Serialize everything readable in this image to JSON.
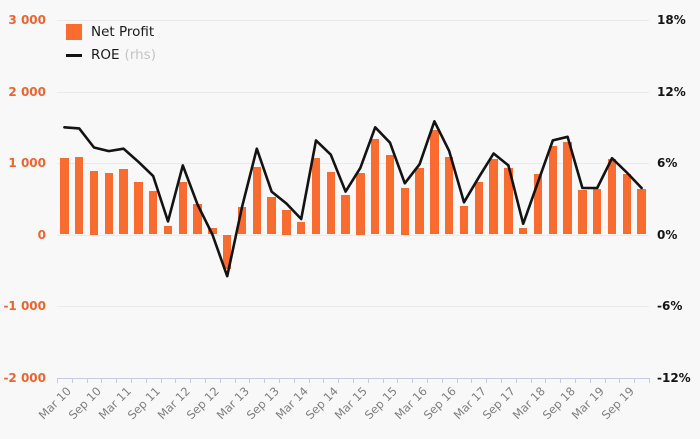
{
  "legend": {
    "items": [
      {
        "label": "Net Profit"
      },
      {
        "label": "ROE",
        "suffix": "(rhs)"
      }
    ]
  },
  "colors": {
    "background": "#F8F8F8",
    "bar": "#F96C2F",
    "line": "#131313",
    "left_axis_labels": "#EE652C",
    "right_axis_labels": "#141414",
    "x_axis_labels": "#7F7F7F",
    "gridline": "#EAEAEA",
    "axis_and_ticks": "#C5CBE3",
    "rhs_muted": "#C4C4C4"
  },
  "chart_data": {
    "type": "combo",
    "grid": true,
    "legend_position": "top-left",
    "categories": [
      "Mar 10",
      "Jun 10",
      "Sep 10",
      "Dec 10",
      "Mar 11",
      "Jun 11",
      "Sep 11",
      "Dec 11",
      "Mar 12",
      "Jun 12",
      "Sep 12",
      "Dec 12",
      "Mar 13",
      "Jun 13",
      "Sep 13",
      "Dec 13",
      "Mar 14",
      "Jun 14",
      "Sep 14",
      "Dec 14",
      "Mar 15",
      "Jun 15",
      "Sep 15",
      "Dec 15",
      "Mar 16",
      "Jun 16",
      "Sep 16",
      "Dec 16",
      "Mar 17",
      "Jun 17",
      "Sep 17",
      "Dec 17",
      "Mar 18",
      "Jun 18",
      "Sep 18",
      "Dec 18",
      "Mar 19",
      "Jun 19",
      "Sep 19",
      "Dec 19"
    ],
    "series": [
      {
        "name": "Net Profit",
        "type": "bar",
        "axis": "left",
        "values": [
          1065,
          1085,
          895,
          865,
          910,
          740,
          610,
          115,
          735,
          425,
          90,
          -485,
          390,
          945,
          530,
          350,
          170,
          1075,
          880,
          555,
          860,
          1330,
          1110,
          650,
          925,
          1460,
          1090,
          395,
          730,
          1050,
          925,
          85,
          845,
          1240,
          1300,
          620,
          635,
          1055,
          840,
          640
        ]
      },
      {
        "name": "ROE",
        "type": "line",
        "axis": "right",
        "unit": "%",
        "values": [
          9.0,
          8.9,
          7.3,
          7.0,
          7.2,
          6.1,
          4.9,
          1.1,
          5.8,
          2.5,
          0.0,
          -3.5,
          2.3,
          7.2,
          3.6,
          2.6,
          1.3,
          7.9,
          6.7,
          3.6,
          5.6,
          9.0,
          7.7,
          4.3,
          5.9,
          9.5,
          7.0,
          2.7,
          4.8,
          6.8,
          5.8,
          0.9,
          4.4,
          7.9,
          8.2,
          3.9,
          3.9,
          6.4,
          5.2,
          3.9
        ]
      }
    ],
    "left_axis": {
      "min": -2000,
      "max": 3000,
      "tick_values": [
        3000,
        2000,
        1000,
        0,
        -1000,
        -2000
      ],
      "tick_labels": [
        "3 000",
        "2 000",
        "1 000",
        "0",
        "-1 000",
        "-2 000"
      ]
    },
    "right_axis": {
      "min": -12,
      "max": 18,
      "tick_values": [
        18,
        12,
        6,
        0,
        -6,
        -12
      ],
      "tick_labels": [
        "18%",
        "12%",
        "6%",
        "0%",
        "-6%",
        "-12%"
      ]
    },
    "x_axis": {
      "labeled_every": 2,
      "labels": [
        "Mar 10",
        "Sep 10",
        "Mar 11",
        "Sep 11",
        "Mar 12",
        "Sep 12",
        "Mar 13",
        "Sep 13",
        "Mar 14",
        "Sep 14",
        "Mar 15",
        "Sep 15",
        "Mar 16",
        "Sep 16",
        "Mar 17",
        "Sep 17",
        "Mar 18",
        "Sep 18",
        "Mar 19",
        "Sep 19"
      ]
    }
  }
}
